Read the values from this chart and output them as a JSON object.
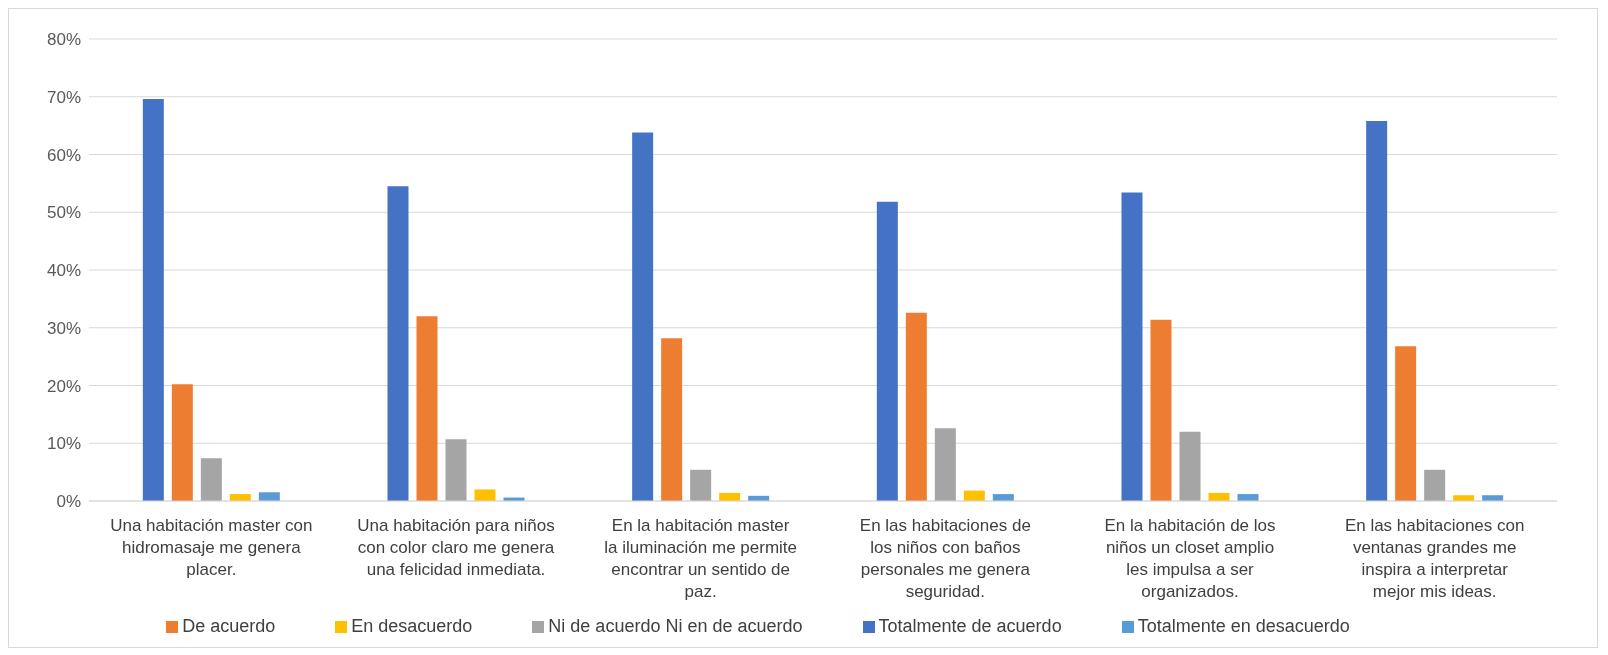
{
  "chart_data": {
    "type": "bar",
    "categories": [
      "Una habitación master con hidromasaje me genera placer.",
      "Una habitación para niños con color claro me genera una felicidad inmediata.",
      "En la habitación master la iluminación me permite encontrar un sentido de paz.",
      "En las habitaciones de los niños con baños personales me genera seguridad.",
      "En la habitación de los niños un closet amplio les impulsa a ser organizados.",
      "En las habitaciones con ventanas grandes me inspira a interpretar mejor mis ideas."
    ],
    "series": [
      {
        "name": "Totalmente de acuerdo",
        "color": "#4472c4",
        "values": [
          69.6,
          54.5,
          63.8,
          51.8,
          53.4,
          65.8
        ]
      },
      {
        "name": "De acuerdo",
        "color": "#ed7d31",
        "values": [
          20.2,
          32.0,
          28.2,
          32.6,
          31.4,
          26.8
        ]
      },
      {
        "name": "Ni de acuerdo Ni en de acuerdo",
        "color": "#a5a5a5",
        "values": [
          7.4,
          10.7,
          5.4,
          12.6,
          12.0,
          5.4
        ]
      },
      {
        "name": "En desacuerdo",
        "color": "#ffc000",
        "values": [
          1.2,
          2.0,
          1.4,
          1.8,
          1.4,
          1.0
        ]
      },
      {
        "name": "Totalmente en desacuerdo",
        "color": "#5b9bd5",
        "values": [
          1.5,
          0.6,
          0.9,
          1.2,
          1.2,
          1.0
        ]
      }
    ],
    "ylim": [
      0,
      80
    ],
    "yticks": [
      {
        "value": 0,
        "label": "0%"
      },
      {
        "value": 10,
        "label": "10%"
      },
      {
        "value": 20,
        "label": "20%"
      },
      {
        "value": 30,
        "label": "30%"
      },
      {
        "value": 40,
        "label": "40%"
      },
      {
        "value": 50,
        "label": "50%"
      },
      {
        "value": 60,
        "label": "60%"
      },
      {
        "value": 70,
        "label": "70%"
      },
      {
        "value": 80,
        "label": "80%"
      }
    ],
    "grid": "y",
    "legend": "bottom"
  }
}
